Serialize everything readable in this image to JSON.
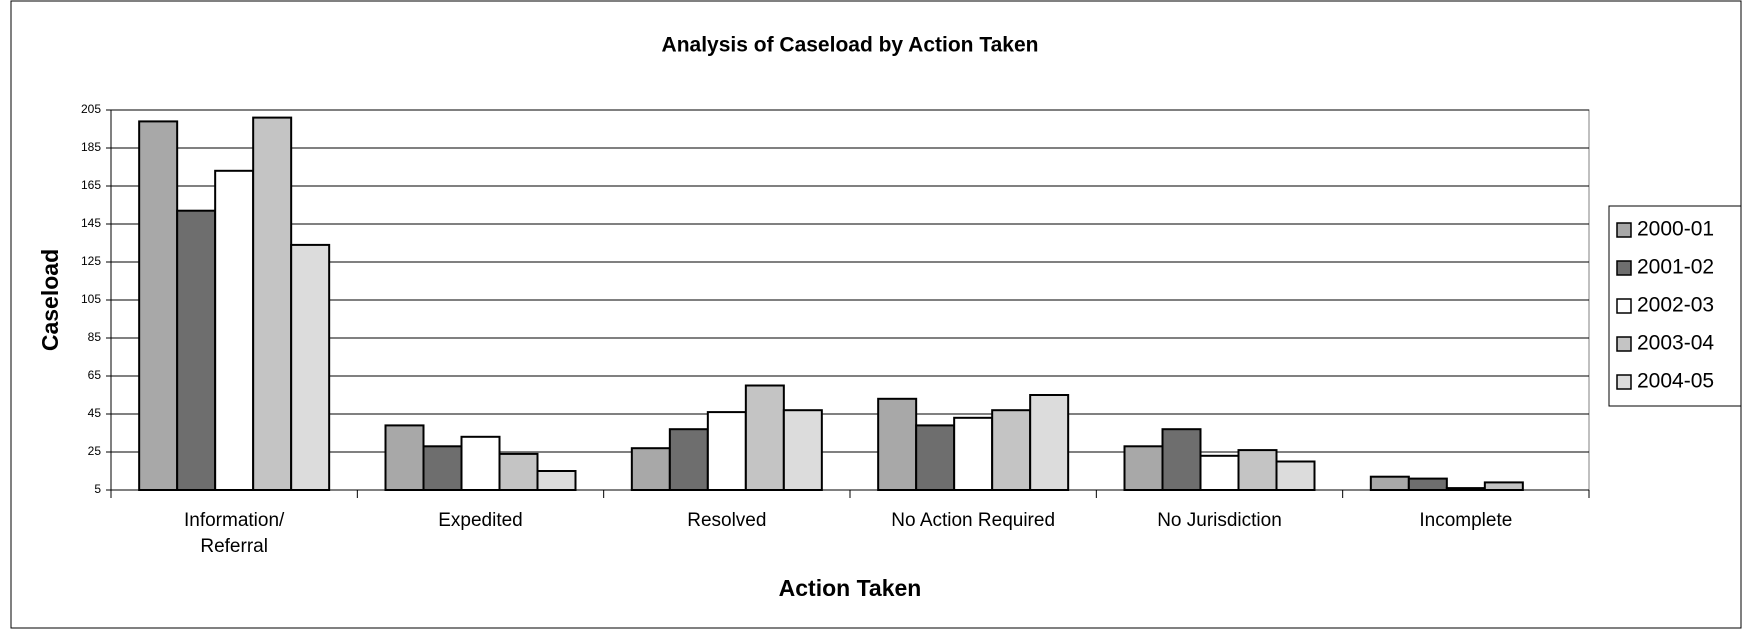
{
  "chart_data": {
    "type": "bar",
    "title": "Analysis of Caseload by Action Taken",
    "x_label": "Action Taken",
    "y_label": "Caseload",
    "categories": [
      "Information/\nReferral",
      "Expedited",
      "Resolved",
      "No Action Required",
      "No Jurisdiction",
      "Incomplete"
    ],
    "series": [
      {
        "name": "2000-01",
        "color": "#a8a8a8",
        "values": [
          199,
          39,
          27,
          53,
          28,
          12
        ]
      },
      {
        "name": "2001-02",
        "color": "#6e6e6e",
        "values": [
          152,
          28,
          37,
          39,
          37,
          11
        ]
      },
      {
        "name": "2002-03",
        "color": "#ffffff",
        "values": [
          173,
          33,
          46,
          43,
          23,
          6
        ]
      },
      {
        "name": "2003-04",
        "color": "#c4c4c4",
        "values": [
          201,
          24,
          60,
          47,
          26,
          9
        ]
      },
      {
        "name": "2004-05",
        "color": "#dcdcdc",
        "values": [
          134,
          15,
          47,
          55,
          20,
          null
        ]
      }
    ],
    "ylim": [
      5,
      205
    ],
    "yticks": [
      5,
      25,
      45,
      65,
      85,
      105,
      125,
      145,
      165,
      185,
      205
    ],
    "grid": true,
    "legend": "right"
  }
}
